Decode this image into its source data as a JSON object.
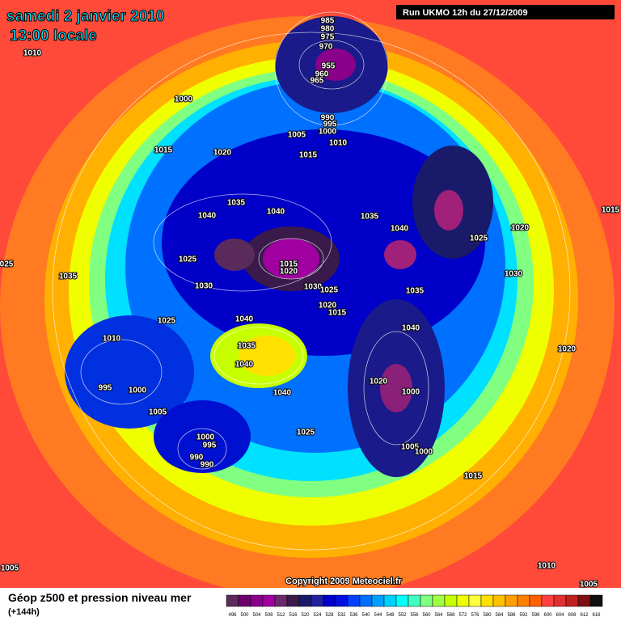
{
  "header": {
    "title": "samedi 2 janvier 2010",
    "subtitle": "13:00 locale",
    "run": "Run UKMO 12h du 27/12/2009"
  },
  "map": {
    "pressure_labels": [
      "1010",
      "985",
      "980",
      "975",
      "970",
      "955",
      "960",
      "965",
      "1000",
      "990",
      "995",
      "1000",
      "1010",
      "1005",
      "1015",
      "1015",
      "1020",
      "1035",
      "1040",
      "1040",
      "1035",
      "1040",
      "1015",
      "1025",
      "1020",
      "1025",
      "1015",
      "1020",
      "1030",
      "1035",
      "1030",
      "1030",
      "1025",
      "1035",
      "1020",
      "1015",
      "1025",
      "1040",
      "1040",
      "1010",
      "1035",
      "1040",
      "1020",
      "1020",
      "1000",
      "995",
      "1000",
      "1040",
      "1005",
      "1025",
      "1000",
      "995",
      "990",
      "990",
      "1005",
      "1000",
      "1015",
      "1010",
      "1005",
      "1005",
      "025"
    ],
    "copyright": "Copyright 2009 Meteociel.fr"
  },
  "legend": {
    "title": "Géop z500 et pression niveau mer",
    "subtitle": "(+144h)",
    "ticks": [
      "496",
      "500",
      "504",
      "508",
      "512",
      "516",
      "520",
      "524",
      "528",
      "532",
      "536",
      "540",
      "544",
      "548",
      "552",
      "556",
      "560",
      "564",
      "568",
      "572",
      "576",
      "580",
      "584",
      "588",
      "592",
      "596",
      "600",
      "604",
      "608",
      "612",
      "616"
    ],
    "colors": [
      "#5a2a5a",
      "#6e006e",
      "#8a008a",
      "#a000a0",
      "#6a2a6a",
      "#3a1a4a",
      "#1a1a6a",
      "#2020a0",
      "#0000c8",
      "#0010e0",
      "#0040ff",
      "#0070ff",
      "#00a0ff",
      "#00d0ff",
      "#00ffff",
      "#40ffc0",
      "#80ff80",
      "#a0ff40",
      "#c8ff00",
      "#f0ff00",
      "#ffff40",
      "#ffe000",
      "#ffc000",
      "#ffa000",
      "#ff8000",
      "#ff6000",
      "#ff4040",
      "#e03030",
      "#c02020",
      "#801010",
      "#101010"
    ]
  }
}
